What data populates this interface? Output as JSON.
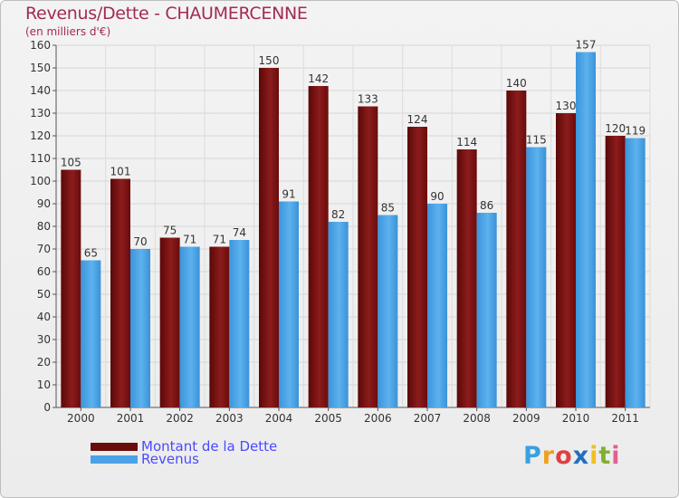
{
  "chart_data": {
    "type": "bar",
    "title": "Revenus/Dette - CHAUMERCENNE",
    "subtitle": "(en milliers d'€)",
    "categories": [
      "2000",
      "2001",
      "2002",
      "2003",
      "2004",
      "2005",
      "2006",
      "2007",
      "2008",
      "2009",
      "2010",
      "2011"
    ],
    "series": [
      {
        "name": "Montant de la Dette",
        "values": [
          105,
          101,
          75,
          71,
          150,
          142,
          133,
          124,
          114,
          140,
          130,
          120
        ],
        "color": "#7a1010"
      },
      {
        "name": "Revenus",
        "values": [
          65,
          70,
          71,
          74,
          91,
          82,
          85,
          90,
          86,
          115,
          157,
          119
        ],
        "color": "#4aa3e6"
      }
    ],
    "ylim": [
      0,
      160
    ],
    "yticks": [
      0,
      10,
      20,
      30,
      40,
      50,
      60,
      70,
      80,
      90,
      100,
      110,
      120,
      130,
      140,
      150,
      160
    ],
    "grid": true,
    "legend": "bottom-left"
  },
  "logo": {
    "letters": [
      "P",
      "r",
      "o",
      "x",
      "i",
      "t",
      "i"
    ],
    "colors": [
      "#3aa0e0",
      "#f0a020",
      "#e04040",
      "#2070c0",
      "#f0c020",
      "#80b030",
      "#e06090"
    ]
  }
}
